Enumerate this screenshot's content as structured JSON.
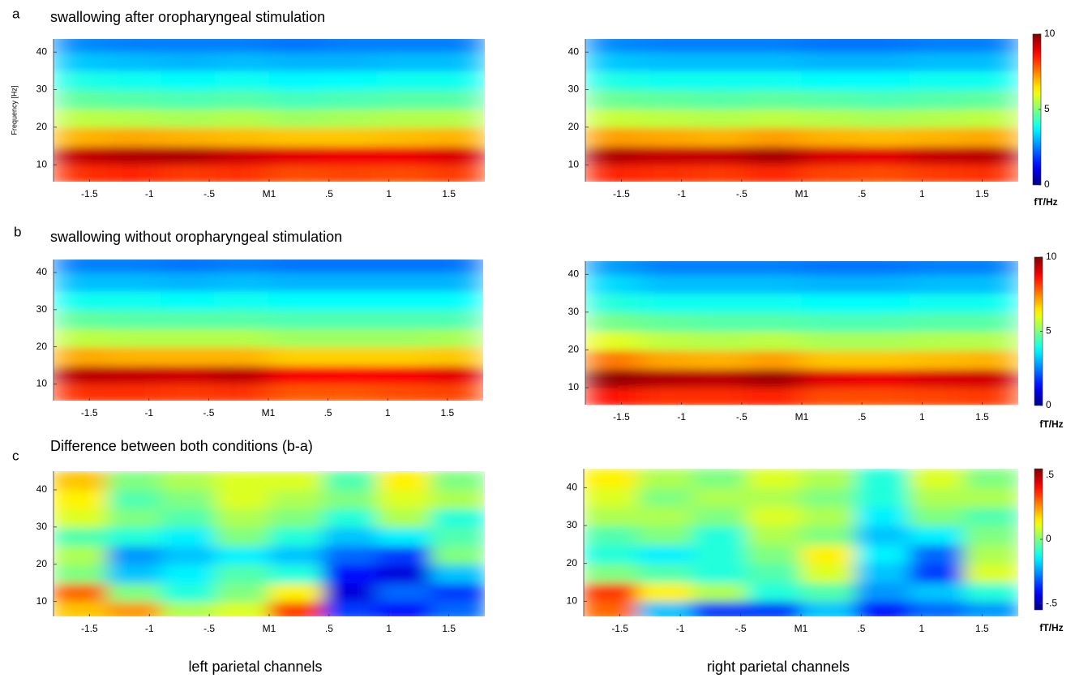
{
  "chart_data": [
    {
      "type": "heatmap",
      "panel": "a",
      "title": "swallowing after oropharyngeal stimulation",
      "ylabel": "Frequency [Hz]",
      "xlim": [
        -1.8,
        1.8
      ],
      "ylim": [
        5.5,
        43.5
      ],
      "xticks": [
        -1.5,
        -1,
        {
          "value": -0.5,
          "label": "-.5"
        },
        {
          "value": 0,
          "label": "M1"
        },
        {
          "value": 0.5,
          "label": ".5"
        },
        1,
        1.5
      ],
      "yticks": [
        10,
        20,
        30,
        40
      ],
      "x": [
        -1.575,
        -1.125,
        -0.675,
        -0.225,
        0.225,
        0.675,
        1.125,
        1.575
      ],
      "y": [
        7.5,
        12.5,
        17.5,
        22.5,
        27.5,
        32.5,
        37.5,
        42.5
      ],
      "z": [
        [
          8.3,
          8.4,
          8.2,
          8.3,
          8.0,
          8.1,
          8.0,
          8.2
        ],
        [
          9.3,
          9.5,
          9.5,
          9.2,
          9.0,
          8.9,
          8.9,
          9.1
        ],
        [
          7.0,
          7.1,
          7.0,
          6.9,
          6.8,
          6.8,
          6.9,
          7.0
        ],
        [
          5.6,
          5.5,
          5.4,
          5.5,
          5.3,
          5.4,
          5.5,
          5.5
        ],
        [
          4.7,
          4.6,
          4.5,
          4.6,
          4.4,
          4.5,
          4.6,
          4.6
        ],
        [
          4.0,
          3.9,
          3.8,
          3.9,
          3.7,
          3.8,
          3.9,
          3.9
        ],
        [
          3.2,
          3.1,
          3.0,
          3.1,
          3.0,
          3.0,
          3.1,
          3.1
        ],
        [
          2.6,
          2.5,
          2.5,
          2.5,
          2.4,
          2.5,
          2.5,
          2.5
        ]
      ]
    },
    {
      "type": "heatmap",
      "xlim": [
        -1.8,
        1.8
      ],
      "ylim": [
        5.5,
        43.5
      ],
      "xticks": [
        -1.5,
        -1,
        {
          "value": -0.5,
          "label": "-.5"
        },
        {
          "value": 0,
          "label": "M1"
        },
        {
          "value": 0.5,
          "label": ".5"
        },
        1,
        1.5
      ],
      "yticks": [
        10,
        20,
        30,
        40
      ],
      "x": [
        -1.575,
        -1.125,
        -0.675,
        -0.225,
        0.225,
        0.675,
        1.125,
        1.575
      ],
      "y": [
        7.5,
        12.5,
        17.5,
        22.5,
        27.5,
        32.5,
        37.5,
        42.5
      ],
      "z": [
        [
          8.4,
          8.3,
          8.2,
          8.4,
          8.1,
          8.0,
          8.2,
          8.3
        ],
        [
          9.5,
          9.3,
          9.3,
          9.6,
          9.1,
          9.0,
          9.3,
          9.4
        ],
        [
          7.2,
          7.1,
          7.0,
          7.2,
          7.0,
          6.9,
          7.0,
          7.1
        ],
        [
          5.7,
          5.6,
          5.5,
          5.6,
          5.5,
          5.4,
          5.5,
          5.6
        ],
        [
          4.8,
          4.7,
          4.6,
          4.7,
          4.6,
          4.5,
          4.6,
          4.7
        ],
        [
          4.0,
          3.9,
          3.9,
          3.9,
          3.8,
          3.8,
          3.9,
          3.9
        ],
        [
          3.2,
          3.1,
          3.1,
          3.1,
          3.0,
          3.0,
          3.1,
          3.1
        ],
        [
          2.6,
          2.5,
          2.5,
          2.5,
          2.4,
          2.4,
          2.5,
          2.5
        ]
      ],
      "colorbar": {
        "lim": [
          0,
          10
        ],
        "ticks": [
          0,
          5,
          10
        ],
        "label": "fT/Hz"
      }
    },
    {
      "type": "heatmap",
      "panel": "b",
      "title": "swallowing without oropharyngeal stimulation",
      "xlim": [
        -1.8,
        1.8
      ],
      "ylim": [
        5.5,
        43.5
      ],
      "xticks": [
        -1.5,
        -1,
        {
          "value": -0.5,
          "label": "-.5"
        },
        {
          "value": 0,
          "label": "M1"
        },
        {
          "value": 0.5,
          "label": ".5"
        },
        1,
        1.5
      ],
      "yticks": [
        10,
        20,
        30,
        40
      ],
      "x": [
        -1.575,
        -1.125,
        -0.675,
        -0.225,
        0.225,
        0.675,
        1.125,
        1.575
      ],
      "y": [
        7.5,
        12.5,
        17.5,
        22.5,
        27.5,
        32.5,
        37.5,
        42.5
      ],
      "z": [
        [
          8.3,
          8.3,
          8.2,
          8.3,
          7.9,
          7.9,
          8.0,
          8.1
        ],
        [
          9.4,
          9.3,
          9.2,
          9.4,
          8.8,
          8.7,
          8.8,
          9.0
        ],
        [
          7.1,
          7.0,
          7.0,
          7.0,
          6.7,
          6.7,
          6.7,
          6.8
        ],
        [
          5.6,
          5.5,
          5.5,
          5.5,
          5.3,
          5.3,
          5.3,
          5.4
        ],
        [
          4.7,
          4.6,
          4.6,
          4.6,
          4.5,
          4.5,
          4.5,
          4.5
        ],
        [
          3.9,
          3.9,
          3.8,
          3.9,
          3.8,
          3.8,
          3.8,
          3.8
        ],
        [
          3.1,
          3.1,
          3.0,
          3.1,
          3.0,
          3.0,
          3.0,
          3.0
        ],
        [
          2.5,
          2.5,
          2.4,
          2.5,
          2.4,
          2.4,
          2.4,
          2.4
        ]
      ]
    },
    {
      "type": "heatmap",
      "xlim": [
        -1.8,
        1.8
      ],
      "ylim": [
        5.5,
        43.5
      ],
      "xticks": [
        -1.5,
        -1,
        {
          "value": -0.5,
          "label": "-.5"
        },
        {
          "value": 0,
          "label": "M1"
        },
        {
          "value": 0.5,
          "label": ".5"
        },
        1,
        1.5
      ],
      "yticks": [
        10,
        20,
        30,
        40
      ],
      "x": [
        -1.575,
        -1.125,
        -0.675,
        -0.225,
        0.225,
        0.675,
        1.125,
        1.575
      ],
      "y": [
        7.5,
        12.5,
        17.5,
        22.5,
        27.5,
        32.5,
        37.5,
        42.5
      ],
      "z": [
        [
          8.6,
          8.3,
          8.3,
          8.5,
          8.0,
          8.0,
          8.1,
          8.2
        ],
        [
          9.8,
          9.5,
          9.4,
          9.7,
          9.0,
          8.9,
          9.1,
          9.2
        ],
        [
          7.6,
          7.1,
          7.0,
          7.2,
          6.8,
          6.8,
          6.9,
          7.0
        ],
        [
          6.0,
          5.6,
          5.5,
          5.6,
          5.4,
          5.4,
          5.5,
          5.5
        ],
        [
          4.9,
          4.7,
          4.6,
          4.6,
          4.5,
          4.5,
          4.6,
          4.6
        ],
        [
          4.1,
          3.9,
          3.9,
          3.9,
          3.8,
          3.8,
          3.9,
          3.9
        ],
        [
          3.4,
          3.1,
          3.1,
          3.1,
          3.0,
          3.0,
          3.1,
          3.1
        ],
        [
          2.8,
          2.5,
          2.5,
          2.5,
          2.4,
          2.4,
          2.5,
          2.5
        ]
      ],
      "colorbar": {
        "lim": [
          0,
          10
        ],
        "ticks": [
          0,
          5,
          10
        ],
        "label": "fT/Hz"
      }
    },
    {
      "type": "heatmap",
      "panel": "c",
      "title": "Difference between both conditions (b-a)",
      "xlim": [
        -1.8,
        1.8
      ],
      "ylim": [
        6,
        45
      ],
      "xticks": [
        -1.5,
        -1,
        {
          "value": -0.5,
          "label": "-.5"
        },
        {
          "value": 0,
          "label": "M1"
        },
        {
          "value": 0.5,
          "label": ".5"
        },
        1,
        1.5
      ],
      "yticks": [
        10,
        20,
        30,
        40
      ],
      "x": [
        -1.575,
        -1.125,
        -0.675,
        -0.225,
        0.225,
        0.675,
        1.125,
        1.575
      ],
      "y": [
        7.5,
        12.5,
        17.5,
        22.5,
        27.5,
        32.5,
        37.5,
        42.5
      ],
      "z": [
        [
          0.2,
          0.25,
          0.05,
          0.1,
          0.35,
          -0.35,
          -0.4,
          -0.3
        ],
        [
          0.3,
          0.0,
          -0.1,
          0.0,
          0.15,
          -0.45,
          -0.3,
          -0.35
        ],
        [
          0.0,
          -0.2,
          -0.15,
          -0.05,
          -0.1,
          -0.4,
          -0.45,
          -0.2
        ],
        [
          0.05,
          -0.25,
          -0.2,
          -0.15,
          -0.2,
          -0.3,
          -0.35,
          0.0
        ],
        [
          -0.05,
          -0.1,
          -0.15,
          0.0,
          -0.1,
          -0.2,
          -0.15,
          -0.05
        ],
        [
          0.1,
          0.0,
          -0.05,
          0.05,
          0.0,
          -0.1,
          0.05,
          -0.1
        ],
        [
          0.15,
          -0.05,
          0.0,
          0.1,
          0.05,
          0.0,
          0.1,
          0.05
        ],
        [
          0.2,
          0.0,
          0.05,
          0.1,
          0.1,
          -0.05,
          0.15,
          0.0
        ]
      ]
    },
    {
      "type": "heatmap",
      "xlim": [
        -1.8,
        1.8
      ],
      "ylim": [
        6,
        45
      ],
      "xticks": [
        -1.5,
        -1,
        {
          "value": -0.5,
          "label": "-.5"
        },
        {
          "value": 0,
          "label": "M1"
        },
        {
          "value": 0.5,
          "label": ".5"
        },
        1,
        1.5
      ],
      "yticks": [
        10,
        20,
        30,
        40
      ],
      "x": [
        -1.575,
        -1.125,
        -0.675,
        -0.225,
        0.225,
        0.675,
        1.125,
        1.575
      ],
      "y": [
        7.5,
        12.5,
        17.5,
        22.5,
        27.5,
        32.5,
        37.5,
        42.5
      ],
      "z": [
        [
          0.3,
          -0.2,
          -0.35,
          -0.35,
          -0.2,
          -0.4,
          -0.3,
          -0.25
        ],
        [
          0.35,
          0.15,
          0.05,
          -0.1,
          -0.05,
          -0.25,
          -0.2,
          -0.1
        ],
        [
          0.0,
          -0.05,
          -0.1,
          -0.05,
          0.1,
          -0.2,
          -0.35,
          0.1
        ],
        [
          -0.1,
          -0.15,
          -0.1,
          0.0,
          0.15,
          -0.15,
          -0.3,
          0.05
        ],
        [
          -0.05,
          0.0,
          -0.1,
          0.05,
          0.0,
          -0.2,
          -0.15,
          0.0
        ],
        [
          0.05,
          0.05,
          0.0,
          0.1,
          0.05,
          -0.15,
          0.0,
          -0.05
        ],
        [
          0.1,
          0.0,
          0.05,
          0.05,
          0.0,
          -0.1,
          0.05,
          0.05
        ],
        [
          0.15,
          0.05,
          0.0,
          0.1,
          0.05,
          -0.1,
          0.1,
          0.0
        ]
      ],
      "colorbar": {
        "lim": [
          -0.55,
          0.55
        ],
        "ticks": [
          {
            "value": -0.5,
            "label": "-.5"
          },
          0,
          {
            "value": 0.5,
            "label": ".5"
          }
        ],
        "label": "fT/Hz"
      }
    }
  ],
  "footer": [
    "left parietal channels",
    "right parietal channels"
  ]
}
